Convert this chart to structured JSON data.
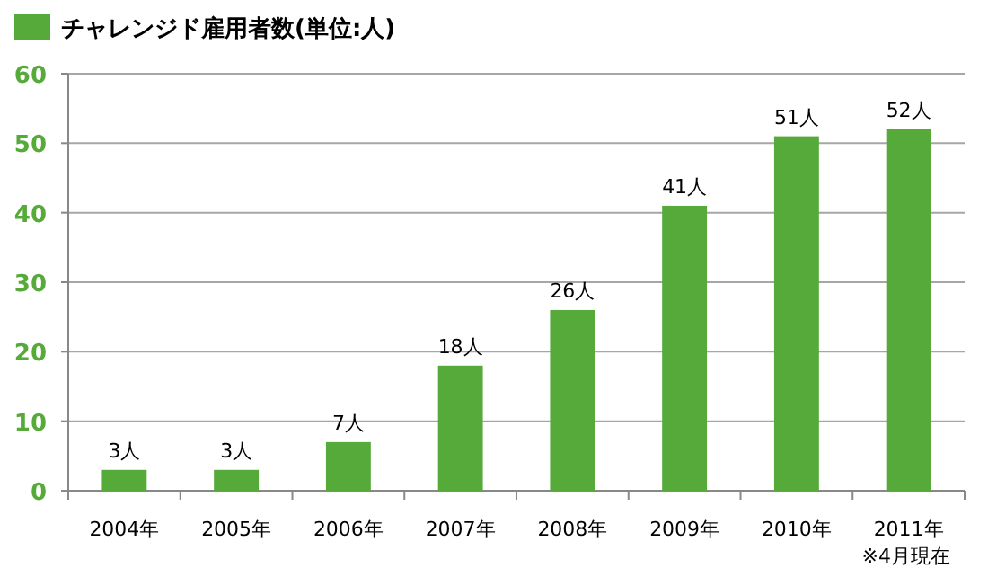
{
  "chart_data": {
    "type": "bar",
    "categories": [
      "2004年",
      "2005年",
      "2006年",
      "2007年",
      "2008年",
      "2009年",
      "2010年",
      "2011年"
    ],
    "series": [
      {
        "name": "チャレンジド雇用者数(単位:人)",
        "color": "#56aa3a",
        "values": [
          3,
          3,
          7,
          18,
          26,
          41,
          51,
          52
        ],
        "value_labels": [
          "3人",
          "3人",
          "7人",
          "18人",
          "26人",
          "41人",
          "51人",
          "52人"
        ]
      }
    ],
    "ylim": [
      0,
      60
    ],
    "yticks": [
      0,
      10,
      20,
      30,
      40,
      50,
      60
    ],
    "grid": "y",
    "legend": "top left",
    "annotations": [
      "※4月現在"
    ]
  }
}
